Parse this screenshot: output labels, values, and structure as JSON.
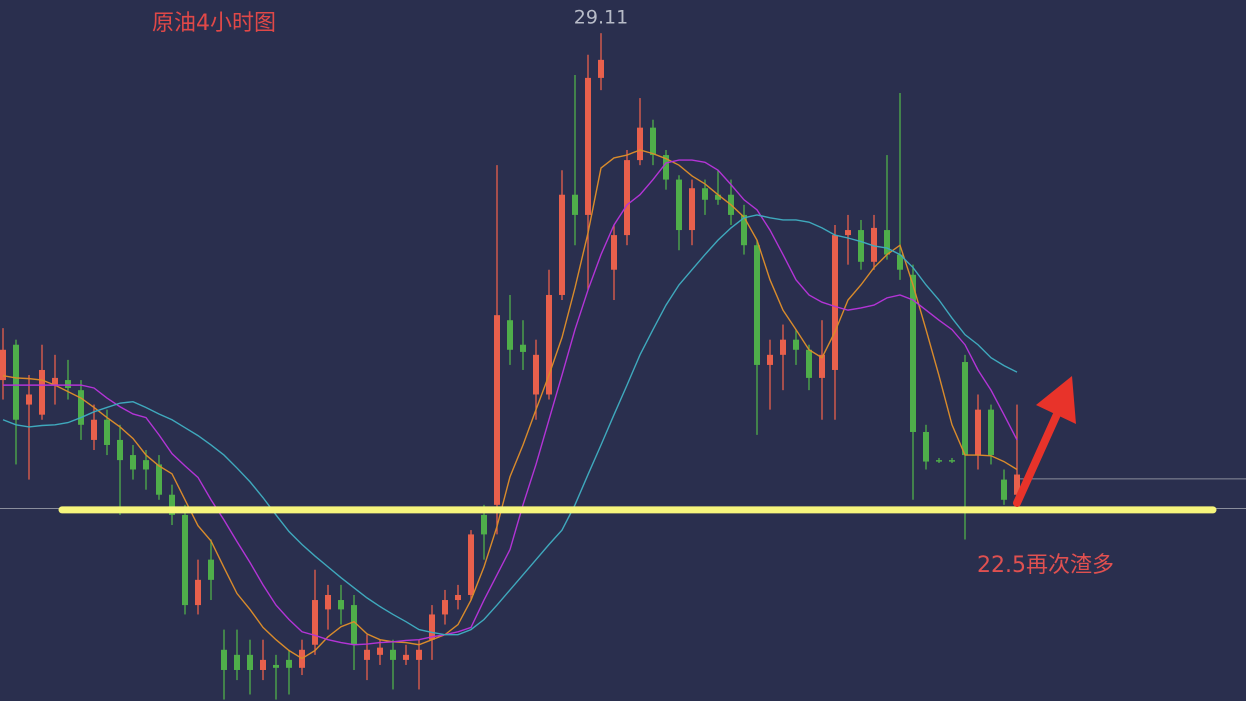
{
  "chart_data": {
    "type": "candlestick",
    "title": "原油4小时图",
    "ylim": [
      19.85,
      29.57
    ],
    "up_color": "#e8604c",
    "down_color": "#4fae4a",
    "open": [
      24.3,
      24.79,
      23.96,
      23.82,
      24.23,
      24.3,
      24.16,
      23.47,
      23.75,
      23.47,
      23.26,
      23.19,
      23.13,
      22.71,
      22.43,
      21.18,
      21.81,
      20.56,
      20.49,
      20.49,
      20.28,
      20.35,
      20.42,
      20.31,
      20.63,
      21.12,
      21.25,
      21.18,
      20.42,
      20.49,
      20.56,
      20.42,
      20.42,
      20.7,
      21.05,
      21.25,
      21.32,
      22.43,
      22.57,
      25.13,
      24.79,
      24.1,
      24.1,
      25.48,
      26.87,
      26.59,
      28.49,
      25.83,
      26.31,
      27.35,
      27.8,
      27.42,
      27.08,
      26.38,
      26.96,
      26.87,
      26.87,
      26.59,
      26.17,
      24.51,
      24.65,
      24.86,
      24.72,
      24.33,
      24.44,
      26.31,
      26.38,
      25.94,
      26.38,
      26.04,
      25.76,
      23.58,
      23.19,
      23.19,
      24.55,
      23.26,
      23.89,
      22.92,
      22.71
    ],
    "high": [
      25.02,
      24.86,
      24.37,
      24.79,
      24.65,
      24.58,
      24.3,
      23.96,
      23.89,
      23.68,
      23.4,
      23.33,
      23.26,
      22.85,
      22.57,
      21.81,
      22.09,
      20.84,
      20.84,
      20.7,
      20.7,
      20.49,
      20.56,
      20.7,
      21.67,
      21.46,
      21.46,
      21.32,
      20.77,
      20.7,
      20.7,
      20.63,
      20.7,
      21.18,
      21.39,
      21.46,
      22.22,
      22.57,
      27.28,
      25.48,
      25.13,
      24.86,
      25.83,
      27.21,
      28.53,
      28.81,
      29.11,
      26.45,
      27.49,
      28.21,
      27.91,
      27.49,
      27.14,
      27.08,
      27.08,
      27.21,
      27.08,
      26.73,
      26.24,
      24.86,
      25.07,
      25.0,
      24.79,
      25.13,
      26.45,
      26.59,
      26.52,
      26.59,
      27.42,
      28.28,
      25.9,
      23.68,
      23.22,
      23.22,
      24.65,
      24.1,
      23.96,
      23.06,
      23.96
    ],
    "low": [
      24.03,
      23.13,
      22.92,
      23.75,
      23.96,
      24.03,
      23.47,
      23.33,
      23.26,
      22.43,
      22.92,
      22.78,
      22.64,
      22.29,
      21.05,
      21.05,
      21.25,
      19.87,
      20.14,
      19.94,
      20.14,
      19.87,
      19.94,
      20.21,
      20.49,
      20.84,
      20.91,
      20.28,
      20.14,
      20.35,
      20.01,
      20.35,
      20.01,
      20.42,
      20.91,
      21.12,
      21.25,
      21.81,
      22.16,
      24.51,
      24.44,
      23.75,
      24.03,
      25.41,
      26.17,
      25.55,
      28.32,
      25.41,
      26.17,
      27.28,
      27.28,
      26.94,
      26.1,
      26.17,
      26.59,
      26.73,
      26.45,
      26.04,
      23.54,
      23.89,
      24.16,
      24.51,
      24.16,
      23.75,
      23.75,
      25.9,
      25.83,
      25.83,
      25.97,
      25.69,
      22.64,
      23.06,
      23.15,
      23.15,
      22.09,
      23.06,
      23.13,
      22.57,
      22.57
    ],
    "close": [
      24.72,
      23.75,
      24.1,
      24.44,
      24.33,
      24.19,
      23.68,
      23.75,
      23.4,
      23.19,
      23.06,
      23.06,
      22.71,
      22.43,
      21.18,
      21.53,
      21.53,
      20.28,
      20.28,
      20.28,
      20.42,
      20.31,
      20.31,
      20.56,
      21.25,
      21.32,
      21.12,
      20.63,
      20.56,
      20.59,
      20.42,
      20.49,
      20.56,
      21.05,
      21.25,
      21.32,
      22.16,
      22.16,
      25.2,
      24.72,
      24.69,
      24.65,
      25.48,
      26.87,
      26.59,
      28.49,
      28.74,
      26.31,
      27.35,
      27.8,
      27.42,
      27.08,
      26.38,
      26.96,
      26.8,
      26.8,
      26.59,
      26.17,
      24.51,
      24.65,
      24.86,
      24.72,
      24.33,
      24.65,
      26.31,
      26.38,
      25.94,
      26.41,
      26.04,
      25.83,
      23.58,
      23.17,
      23.18,
      23.18,
      23.26,
      23.89,
      23.26,
      22.64,
      22.99
    ],
    "lines": [
      {
        "color": "#d98b2b",
        "values": [
          24.36,
          24.33,
          24.32,
          24.3,
          24.23,
          24.14,
          24.05,
          23.92,
          23.78,
          23.65,
          23.49,
          23.26,
          23.11,
          23.0,
          22.64,
          22.28,
          22.07,
          21.7,
          21.34,
          21.12,
          20.87,
          20.7,
          20.55,
          20.44,
          20.55,
          20.74,
          20.88,
          20.95,
          20.78,
          20.7,
          20.67,
          20.66,
          20.63,
          20.7,
          20.77,
          20.91,
          21.25,
          21.71,
          22.27,
          22.96,
          23.4,
          23.89,
          24.37,
          24.89,
          25.58,
          26.34,
          27.24,
          27.38,
          27.42,
          27.49,
          27.44,
          27.37,
          27.28,
          27.13,
          27.02,
          26.87,
          26.73,
          26.56,
          26.24,
          25.69,
          25.27,
          25.0,
          24.72,
          24.61,
          24.97,
          25.41,
          25.62,
          25.86,
          26.04,
          26.17,
          25.62,
          25.0,
          24.36,
          23.68,
          23.26,
          23.26,
          23.25,
          23.17,
          23.06
        ]
      },
      {
        "color": "#b334d6",
        "values": [
          24.23,
          24.23,
          24.23,
          24.23,
          24.23,
          24.23,
          24.23,
          24.19,
          24.05,
          23.93,
          23.83,
          23.78,
          23.54,
          23.28,
          23.11,
          22.95,
          22.64,
          22.36,
          22.06,
          21.77,
          21.46,
          21.18,
          20.98,
          20.81,
          20.76,
          20.7,
          20.66,
          20.63,
          20.64,
          20.66,
          20.67,
          20.69,
          20.7,
          20.74,
          20.77,
          20.81,
          20.87,
          21.25,
          21.6,
          21.95,
          22.57,
          23.13,
          23.75,
          24.37,
          25.0,
          25.55,
          26.04,
          26.45,
          26.73,
          26.87,
          27.08,
          27.31,
          27.35,
          27.35,
          27.32,
          27.21,
          27.01,
          26.8,
          26.66,
          26.38,
          26.04,
          25.69,
          25.48,
          25.38,
          25.32,
          25.27,
          25.3,
          25.34,
          25.44,
          25.48,
          25.41,
          25.27,
          25.13,
          25.0,
          24.79,
          24.44,
          24.16,
          23.82,
          23.47
        ]
      },
      {
        "color": "#3fa9bd",
        "values": [
          23.75,
          23.68,
          23.65,
          23.67,
          23.68,
          23.71,
          23.78,
          23.86,
          23.92,
          23.98,
          24.0,
          23.92,
          23.83,
          23.75,
          23.64,
          23.53,
          23.4,
          23.26,
          23.08,
          22.89,
          22.67,
          22.43,
          22.2,
          22.02,
          21.86,
          21.71,
          21.56,
          21.42,
          21.28,
          21.16,
          21.05,
          20.95,
          20.84,
          20.8,
          20.77,
          20.77,
          20.84,
          20.98,
          21.18,
          21.39,
          21.6,
          21.81,
          22.02,
          22.22,
          22.57,
          22.99,
          23.4,
          23.82,
          24.23,
          24.65,
          25.0,
          25.34,
          25.62,
          25.83,
          26.04,
          26.24,
          26.41,
          26.55,
          26.59,
          26.55,
          26.52,
          26.52,
          26.49,
          26.41,
          26.31,
          26.27,
          26.22,
          26.16,
          26.13,
          26.04,
          25.86,
          25.62,
          25.41,
          25.16,
          24.93,
          24.79,
          24.61,
          24.5,
          24.41
        ]
      }
    ],
    "high_label": 29.11,
    "price_lines": [
      22.52,
      22.93
    ],
    "support_level": 22.5,
    "support_color": "#f6f57c",
    "note": "22.5再次渣多"
  }
}
